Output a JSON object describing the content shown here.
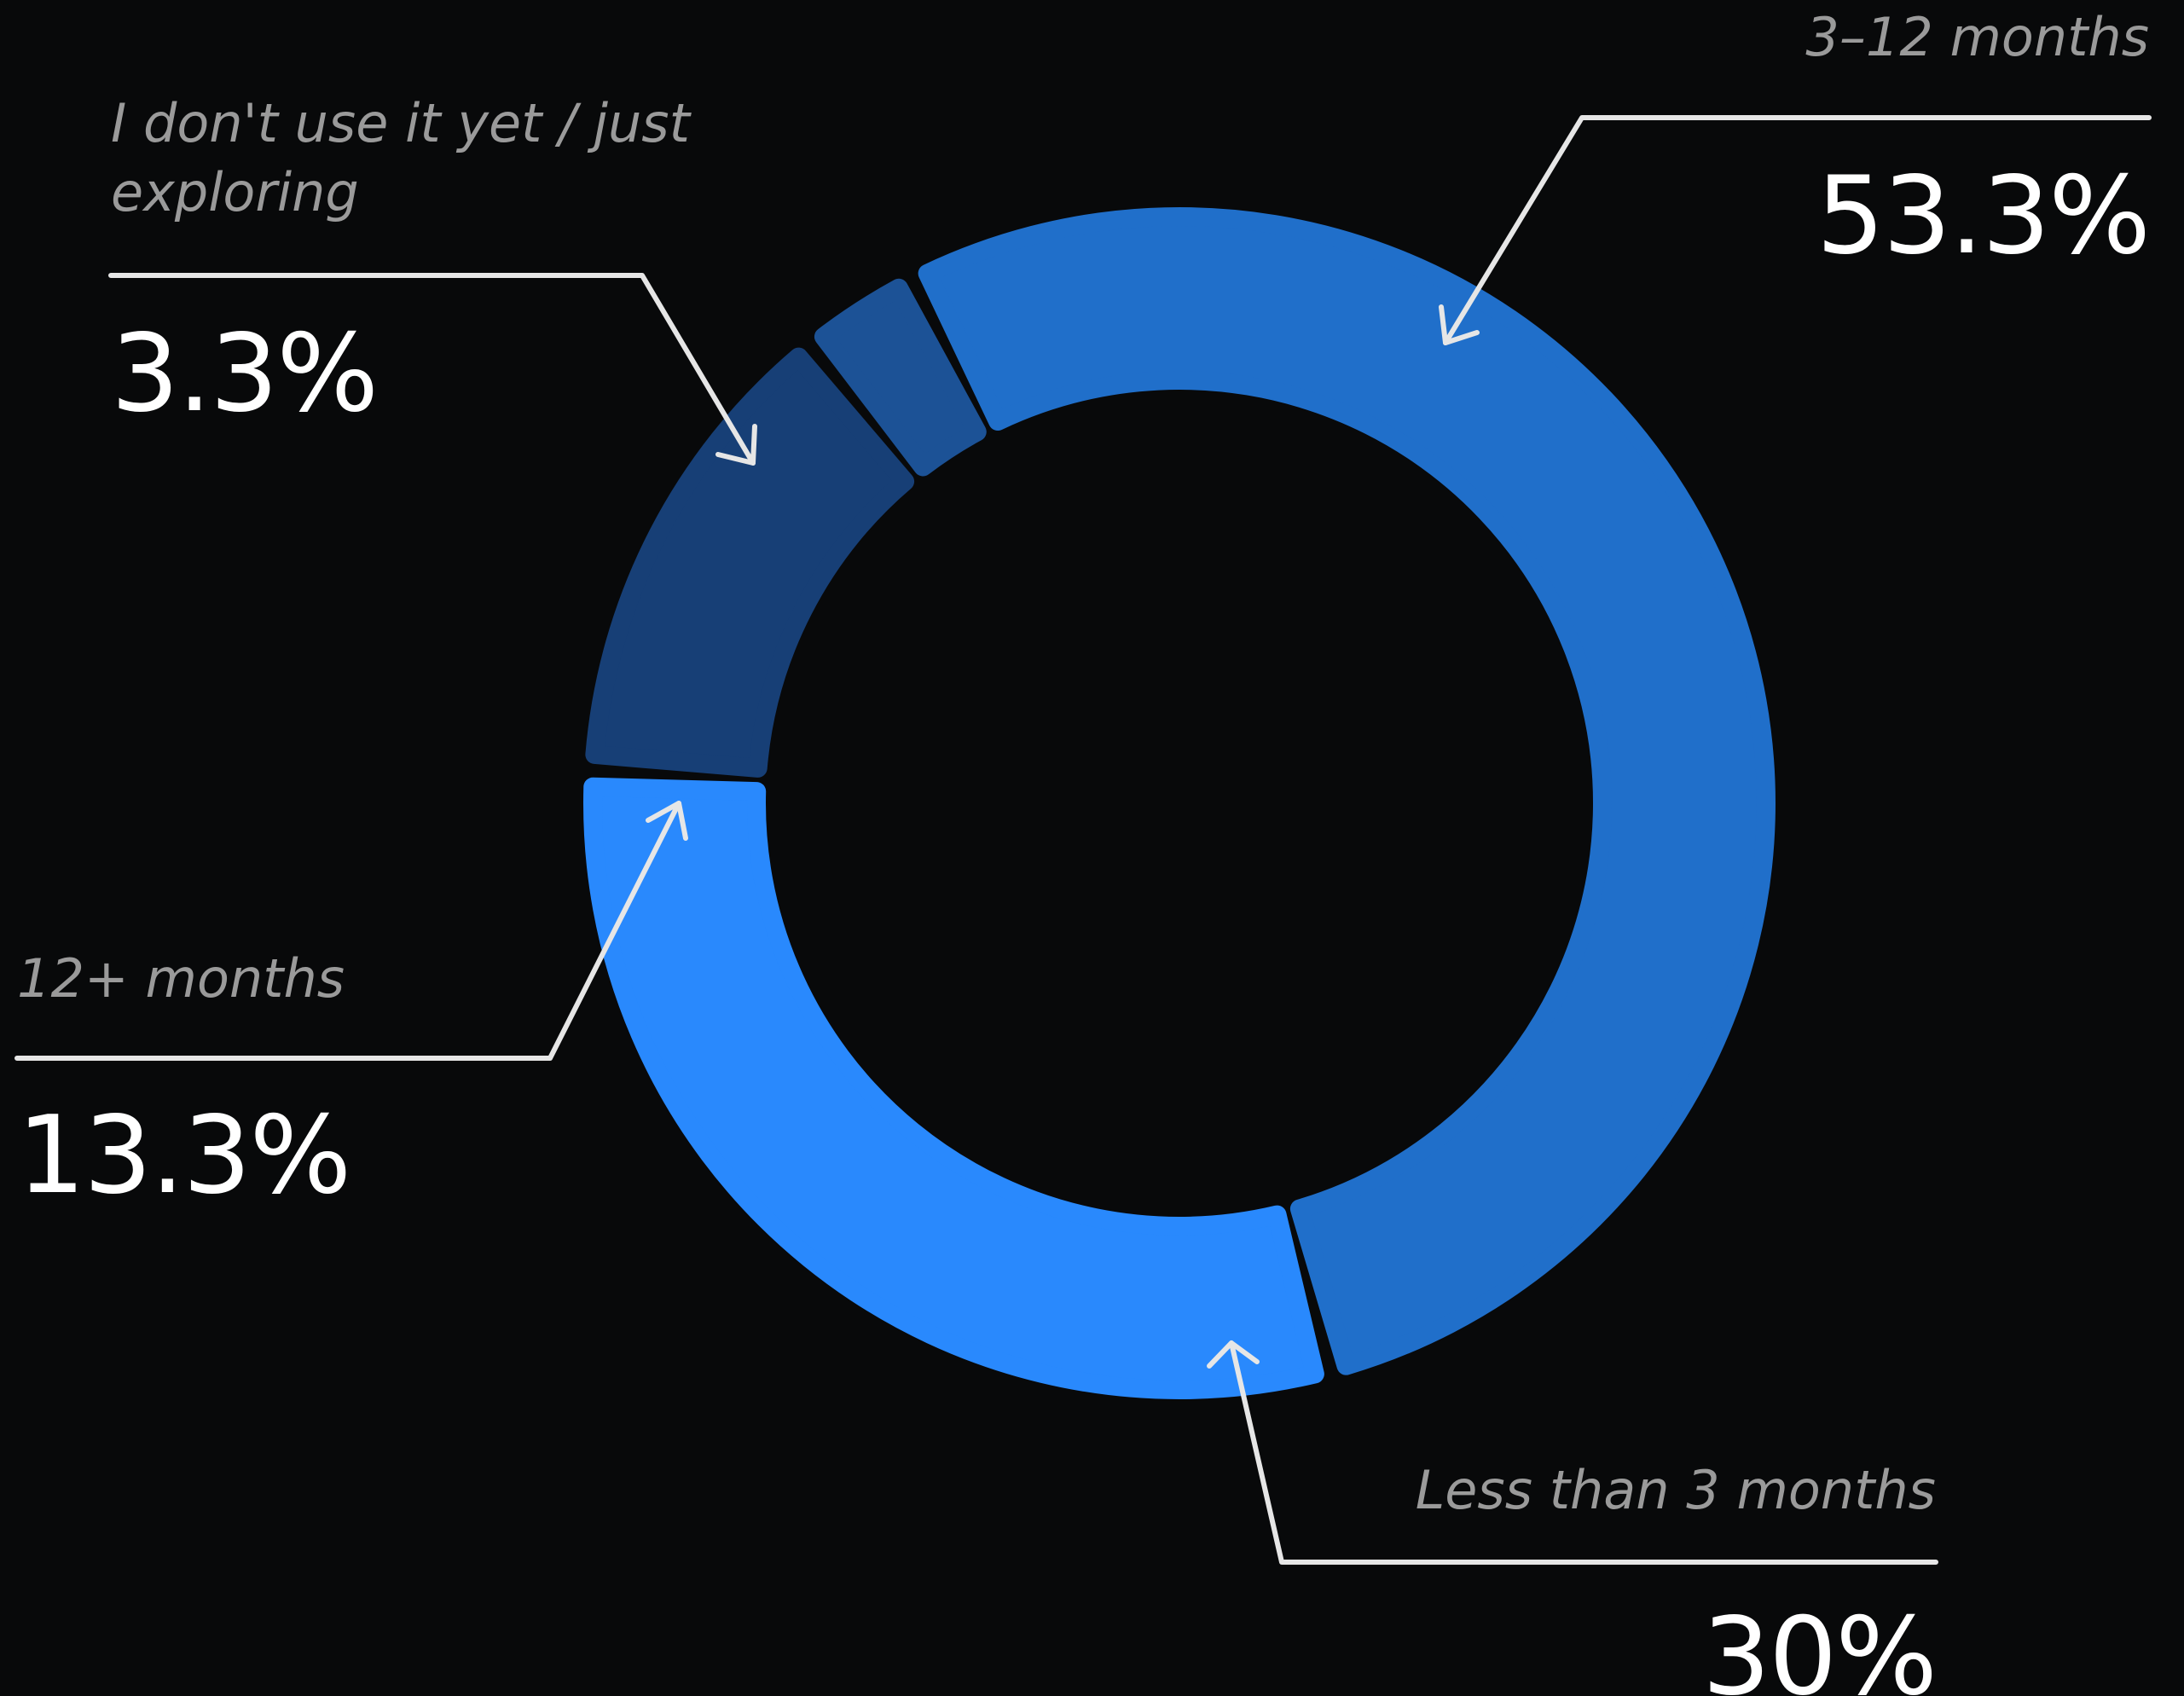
{
  "chart_data": {
    "type": "pie",
    "variant": "donut",
    "slices": [
      {
        "label": "3–12 months",
        "value": 53.3,
        "display": "53.3%",
        "color": "#206fca"
      },
      {
        "label": "Less than 3 months",
        "value": 30,
        "display": "30%",
        "color": "#2989fd"
      },
      {
        "label": "12+ months",
        "value": 13.3,
        "display": "13.3%",
        "color": "#173f76"
      },
      {
        "label": "I don't use it yet / just exploring",
        "value": 3.3,
        "display": "3.3%",
        "color": "#1c5296"
      }
    ],
    "legend": "callouts"
  },
  "colors": {
    "background": "#08090a",
    "label_text": "#9a9a9a",
    "value_text": "#ffffff",
    "leader_line": "#e6e6e6"
  }
}
